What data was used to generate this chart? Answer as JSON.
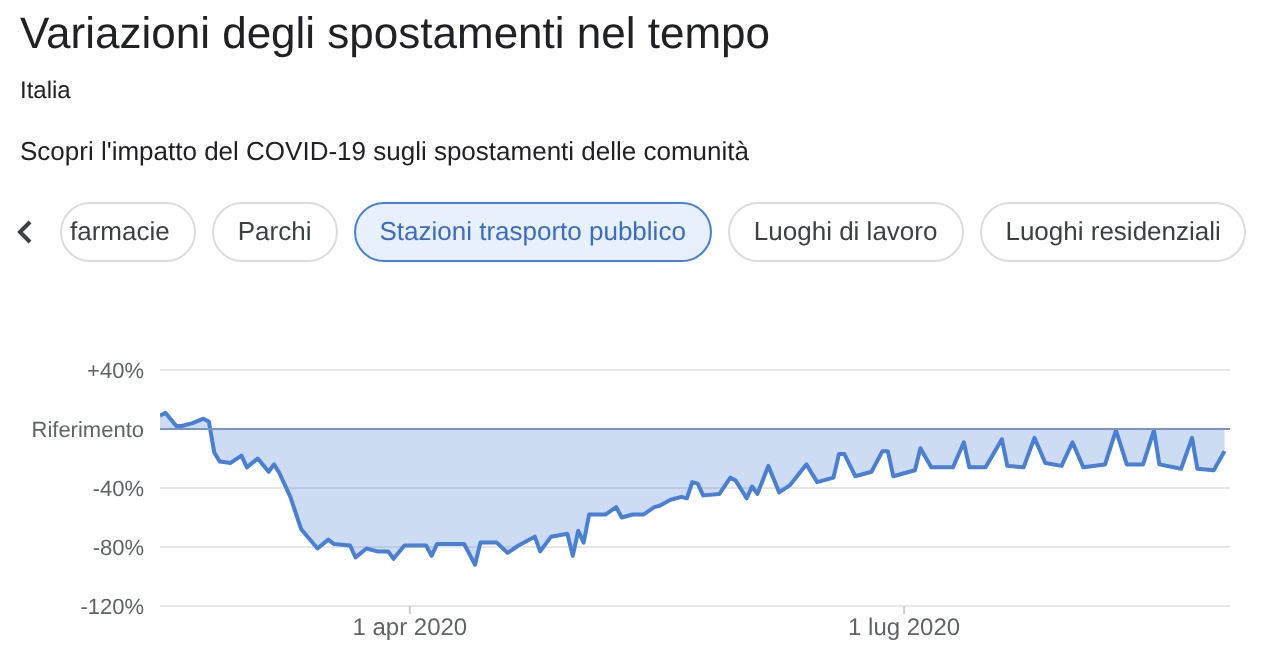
{
  "chart_data": {
    "type": "area",
    "title": "Variazioni degli spostamenti nel tempo",
    "subtitle": "Italia",
    "annotations": [
      "Scopri l'impatto del COVID-19 sugli spostamenti delle comunità",
      "farmacie",
      "Parchi",
      "Stazioni trasporto pubblico",
      "Luoghi di lavoro",
      "Luoghi residenziali"
    ],
    "x": [
      "2020-02-15",
      "2020-02-16",
      "2020-02-18",
      "2020-02-19",
      "2020-02-21",
      "2020-02-23",
      "2020-02-24",
      "2020-02-25",
      "2020-02-26",
      "2020-02-28",
      "2020-03-01",
      "2020-03-02",
      "2020-03-04",
      "2020-03-06",
      "2020-03-07",
      "2020-03-08",
      "2020-03-10",
      "2020-03-12",
      "2020-03-15",
      "2020-03-17",
      "2020-03-18",
      "2020-03-21",
      "2020-03-22",
      "2020-03-24",
      "2020-03-26",
      "2020-03-28",
      "2020-03-29",
      "2020-03-31",
      "2020-04-04",
      "2020-04-05",
      "2020-04-06",
      "2020-04-11",
      "2020-04-13",
      "2020-04-14",
      "2020-04-17",
      "2020-04-19",
      "2020-04-21",
      "2020-04-24",
      "2020-04-25",
      "2020-04-27",
      "2020-04-30",
      "2020-05-01",
      "2020-05-02",
      "2020-05-03",
      "2020-05-04",
      "2020-05-07",
      "2020-05-09",
      "2020-05-10",
      "2020-05-12",
      "2020-05-14",
      "2020-05-16",
      "2020-05-17",
      "2020-05-19",
      "2020-05-21",
      "2020-05-22",
      "2020-05-23",
      "2020-05-24",
      "2020-05-25",
      "2020-05-28",
      "2020-05-30",
      "2020-05-31",
      "2020-06-02",
      "2020-06-03",
      "2020-06-04",
      "2020-06-06",
      "2020-06-08",
      "2020-06-10",
      "2020-06-13",
      "2020-06-15",
      "2020-06-18",
      "2020-06-19",
      "2020-06-20",
      "2020-06-22",
      "2020-06-25",
      "2020-06-27",
      "2020-06-28",
      "2020-06-29",
      "2020-07-03",
      "2020-07-04",
      "2020-07-06",
      "2020-07-10",
      "2020-07-12",
      "2020-07-13",
      "2020-07-16",
      "2020-07-19",
      "2020-07-20",
      "2020-07-23",
      "2020-07-25",
      "2020-07-27",
      "2020-07-30",
      "2020-08-01",
      "2020-08-03",
      "2020-08-07",
      "2020-08-09",
      "2020-08-11",
      "2020-08-14",
      "2020-08-16",
      "2020-08-17",
      "2020-08-21",
      "2020-08-23",
      "2020-08-24",
      "2020-08-27",
      "2020-08-29"
    ],
    "values": [
      9,
      11,
      2,
      2,
      4,
      7,
      5,
      -16,
      -22,
      -23,
      -18,
      -26,
      -20,
      -29,
      -24,
      -30,
      -46,
      -68,
      -81,
      -75,
      -78,
      -79,
      -87,
      -81,
      -83,
      -83,
      -88,
      -79,
      -79,
      -86,
      -78,
      -78,
      -92,
      -77,
      -77,
      -84,
      -79,
      -73,
      -83,
      -73,
      -71,
      -86,
      -69,
      -77,
      -58,
      -58,
      -53,
      -60,
      -58,
      -58,
      -53,
      -52,
      -48,
      -46,
      -47,
      -36,
      -37,
      -45,
      -44,
      -33,
      -35,
      -47,
      -39,
      -44,
      -25,
      -43,
      -38,
      -24,
      -36,
      -33,
      -17,
      -17,
      -32,
      -29,
      -15,
      -15,
      -32,
      -28,
      -13,
      -26,
      -26,
      -9,
      -26,
      -26,
      -7,
      -25,
      -26,
      -6,
      -23,
      -25,
      -9,
      -26,
      -24,
      -1,
      -24,
      -24,
      -1,
      -24,
      -27,
      -6,
      -27,
      -28,
      -15
    ],
    "color": "#4a7fd4",
    "xlim": [
      "2020-02-15",
      "2020-08-30"
    ],
    "xticks": [
      {
        "value": "2020-04-01",
        "label": "1 apr 2020"
      },
      {
        "value": "2020-07-01",
        "label": "1 lug 2020"
      }
    ],
    "ylim": [
      -120,
      40
    ],
    "yticks": [
      {
        "value": 40,
        "label": "+40%"
      },
      {
        "value": 0,
        "label": "Riferimento"
      },
      {
        "value": -40,
        "label": "-40%"
      },
      {
        "value": -80,
        "label": "-80%"
      },
      {
        "value": -120,
        "label": "-120%"
      }
    ],
    "grid": "y",
    "ref_lines": [
      {
        "axis": "y",
        "value": 0,
        "color": "#7b93c4"
      }
    ]
  }
}
